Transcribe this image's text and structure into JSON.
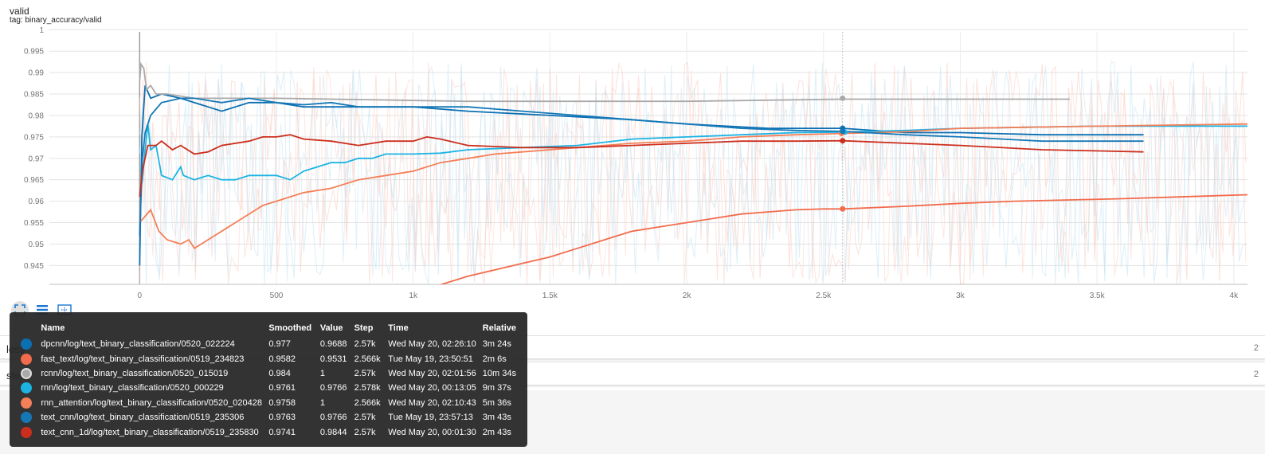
{
  "card": {
    "title": "valid",
    "tag": "tag: binary_accuracy/valid"
  },
  "chart_data": {
    "type": "line",
    "xlim": [
      -330,
      4050
    ],
    "ylim": [
      0.9406,
      0.9995
    ],
    "x_ticks": [
      {
        "v": 0,
        "label": "0"
      },
      {
        "v": 500,
        "label": "500"
      },
      {
        "v": 1000,
        "label": "1k"
      },
      {
        "v": 1500,
        "label": "1.5k"
      },
      {
        "v": 2000,
        "label": "2k"
      },
      {
        "v": 2500,
        "label": "2.5k"
      },
      {
        "v": 3000,
        "label": "3k"
      },
      {
        "v": 3500,
        "label": "3.5k"
      },
      {
        "v": 4000,
        "label": "4k"
      }
    ],
    "y_ticks": [
      {
        "v": 0.945,
        "label": "0.945"
      },
      {
        "v": 0.95,
        "label": "0.95"
      },
      {
        "v": 0.955,
        "label": "0.955"
      },
      {
        "v": 0.96,
        "label": "0.96"
      },
      {
        "v": 0.965,
        "label": "0.965"
      },
      {
        "v": 0.97,
        "label": "0.97"
      },
      {
        "v": 0.975,
        "label": "0.975"
      },
      {
        "v": 0.98,
        "label": "0.98"
      },
      {
        "v": 0.985,
        "label": "0.985"
      },
      {
        "v": 0.99,
        "label": "0.99"
      },
      {
        "v": 0.995,
        "label": "0.995"
      },
      {
        "v": 1,
        "label": "1"
      }
    ],
    "hover_step": 2570,
    "series": [
      {
        "name": "dpcnn/log/text_binary_classification/0520_022224",
        "color": "#0b6fb2",
        "points": [
          [
            0,
            0.945
          ],
          [
            8,
            0.975
          ],
          [
            20,
            0.987
          ],
          [
            40,
            0.984
          ],
          [
            80,
            0.985
          ],
          [
            150,
            0.984
          ],
          [
            250,
            0.982
          ],
          [
            300,
            0.981
          ],
          [
            400,
            0.983
          ],
          [
            500,
            0.983
          ],
          [
            600,
            0.982
          ],
          [
            750,
            0.982
          ],
          [
            1000,
            0.982
          ],
          [
            1200,
            0.981
          ],
          [
            1500,
            0.98
          ],
          [
            1800,
            0.979
          ],
          [
            2000,
            0.978
          ],
          [
            2300,
            0.977
          ],
          [
            2570,
            0.977
          ],
          [
            2800,
            0.976
          ],
          [
            3000,
            0.976
          ],
          [
            3300,
            0.9755
          ],
          [
            3670,
            0.9755
          ]
        ],
        "marker": [
          2570,
          0.977
        ]
      },
      {
        "name": "fast_text/log/text_binary_classification/0519_234823",
        "color": "#f26b4c",
        "points": [
          [
            1100,
            0.9405
          ],
          [
            1200,
            0.9425
          ],
          [
            1300,
            0.944
          ],
          [
            1400,
            0.9455
          ],
          [
            1500,
            0.947
          ],
          [
            1600,
            0.949
          ],
          [
            1700,
            0.951
          ],
          [
            1800,
            0.953
          ],
          [
            1900,
            0.954
          ],
          [
            2000,
            0.955
          ],
          [
            2100,
            0.956
          ],
          [
            2200,
            0.957
          ],
          [
            2300,
            0.9575
          ],
          [
            2400,
            0.958
          ],
          [
            2500,
            0.9582
          ],
          [
            2570,
            0.9582
          ],
          [
            2800,
            0.9588
          ],
          [
            3000,
            0.9595
          ],
          [
            3200,
            0.96
          ],
          [
            3400,
            0.9603
          ],
          [
            3600,
            0.9606
          ],
          [
            3800,
            0.961
          ],
          [
            4050,
            0.9615
          ]
        ],
        "marker": [
          2570,
          0.9582
        ]
      },
      {
        "name": "rcnn/log/text_binary_classification/0520_015019",
        "color": "#aaaaaa",
        "points": [
          [
            0,
            0.988
          ],
          [
            5,
            0.992
          ],
          [
            15,
            0.991
          ],
          [
            25,
            0.986
          ],
          [
            40,
            0.987
          ],
          [
            60,
            0.985
          ],
          [
            100,
            0.985
          ],
          [
            200,
            0.984
          ],
          [
            300,
            0.984
          ],
          [
            500,
            0.984
          ],
          [
            800,
            0.9837
          ],
          [
            1200,
            0.9833
          ],
          [
            1500,
            0.9833
          ],
          [
            2000,
            0.9833
          ],
          [
            2570,
            0.9838
          ],
          [
            3000,
            0.9838
          ],
          [
            3400,
            0.9838
          ]
        ],
        "marker": [
          2570,
          0.984
        ]
      },
      {
        "name": "rnn/log/text_binary_classification/0520_000229",
        "color": "#1cb3e3",
        "points": [
          [
            0,
            0.961
          ],
          [
            10,
            0.965
          ],
          [
            20,
            0.972
          ],
          [
            30,
            0.978
          ],
          [
            40,
            0.972
          ],
          [
            60,
            0.973
          ],
          [
            80,
            0.966
          ],
          [
            120,
            0.965
          ],
          [
            150,
            0.968
          ],
          [
            160,
            0.966
          ],
          [
            200,
            0.965
          ],
          [
            250,
            0.966
          ],
          [
            300,
            0.965
          ],
          [
            350,
            0.965
          ],
          [
            400,
            0.966
          ],
          [
            450,
            0.966
          ],
          [
            500,
            0.966
          ],
          [
            550,
            0.965
          ],
          [
            600,
            0.967
          ],
          [
            650,
            0.968
          ],
          [
            700,
            0.969
          ],
          [
            750,
            0.969
          ],
          [
            800,
            0.97
          ],
          [
            850,
            0.97
          ],
          [
            900,
            0.971
          ],
          [
            1000,
            0.971
          ],
          [
            1100,
            0.9712
          ],
          [
            1200,
            0.972
          ],
          [
            1400,
            0.9725
          ],
          [
            1600,
            0.973
          ],
          [
            1800,
            0.9745
          ],
          [
            2000,
            0.975
          ],
          [
            2200,
            0.9755
          ],
          [
            2400,
            0.976
          ],
          [
            2570,
            0.9761
          ],
          [
            2800,
            0.9765
          ],
          [
            3000,
            0.977
          ],
          [
            3500,
            0.9775
          ],
          [
            4050,
            0.9775
          ]
        ],
        "marker": [
          2578,
          0.9761
        ]
      },
      {
        "name": "rnn_attention/log/text_binary_classification/0520_020428",
        "color": "#f47f58",
        "points": [
          [
            0,
            0.955
          ],
          [
            40,
            0.958
          ],
          [
            70,
            0.953
          ],
          [
            100,
            0.951
          ],
          [
            150,
            0.95
          ],
          [
            180,
            0.951
          ],
          [
            200,
            0.949
          ],
          [
            250,
            0.951
          ],
          [
            300,
            0.953
          ],
          [
            350,
            0.955
          ],
          [
            400,
            0.957
          ],
          [
            450,
            0.959
          ],
          [
            500,
            0.96
          ],
          [
            600,
            0.962
          ],
          [
            700,
            0.963
          ],
          [
            800,
            0.965
          ],
          [
            900,
            0.966
          ],
          [
            1000,
            0.967
          ],
          [
            1100,
            0.969
          ],
          [
            1200,
            0.97
          ],
          [
            1300,
            0.971
          ],
          [
            1400,
            0.9715
          ],
          [
            1500,
            0.972
          ],
          [
            1600,
            0.9725
          ],
          [
            1800,
            0.9735
          ],
          [
            2000,
            0.974
          ],
          [
            2200,
            0.975
          ],
          [
            2400,
            0.9755
          ],
          [
            2570,
            0.9758
          ],
          [
            2800,
            0.9762
          ],
          [
            3000,
            0.977
          ],
          [
            3500,
            0.9775
          ],
          [
            4050,
            0.978
          ]
        ],
        "marker": [
          2566,
          0.9758
        ]
      },
      {
        "name": "text_cnn/log/text_binary_classification/0519_235306",
        "color": "#1478b7",
        "points": [
          [
            0,
            0.952
          ],
          [
            10,
            0.97
          ],
          [
            20,
            0.976
          ],
          [
            40,
            0.98
          ],
          [
            80,
            0.983
          ],
          [
            150,
            0.984
          ],
          [
            200,
            0.984
          ],
          [
            300,
            0.983
          ],
          [
            400,
            0.984
          ],
          [
            500,
            0.983
          ],
          [
            600,
            0.9825
          ],
          [
            700,
            0.983
          ],
          [
            800,
            0.982
          ],
          [
            1000,
            0.982
          ],
          [
            1200,
            0.982
          ],
          [
            1400,
            0.981
          ],
          [
            1600,
            0.98
          ],
          [
            1800,
            0.979
          ],
          [
            2000,
            0.978
          ],
          [
            2200,
            0.977
          ],
          [
            2400,
            0.9765
          ],
          [
            2570,
            0.9763
          ],
          [
            2800,
            0.9755
          ],
          [
            3000,
            0.975
          ],
          [
            3300,
            0.974
          ],
          [
            3670,
            0.974
          ]
        ],
        "marker": [
          2570,
          0.9763
        ]
      },
      {
        "name": "text_cnn_1d/log/text_binary_classification/0519_235830",
        "color": "#cc2e1d",
        "points": [
          [
            0,
            0.961
          ],
          [
            10,
            0.967
          ],
          [
            30,
            0.973
          ],
          [
            60,
            0.973
          ],
          [
            80,
            0.974
          ],
          [
            120,
            0.972
          ],
          [
            150,
            0.973
          ],
          [
            200,
            0.971
          ],
          [
            250,
            0.9715
          ],
          [
            300,
            0.973
          ],
          [
            400,
            0.974
          ],
          [
            450,
            0.975
          ],
          [
            500,
            0.975
          ],
          [
            550,
            0.9755
          ],
          [
            600,
            0.9745
          ],
          [
            700,
            0.974
          ],
          [
            800,
            0.973
          ],
          [
            900,
            0.974
          ],
          [
            1000,
            0.974
          ],
          [
            1050,
            0.975
          ],
          [
            1100,
            0.9745
          ],
          [
            1200,
            0.973
          ],
          [
            1400,
            0.9725
          ],
          [
            1600,
            0.9725
          ],
          [
            1800,
            0.973
          ],
          [
            2000,
            0.9735
          ],
          [
            2200,
            0.974
          ],
          [
            2400,
            0.974
          ],
          [
            2570,
            0.9741
          ],
          [
            2800,
            0.9735
          ],
          [
            3000,
            0.973
          ],
          [
            3300,
            0.972
          ],
          [
            3670,
            0.9715
          ]
        ],
        "marker": [
          2570,
          0.9741
        ]
      }
    ]
  },
  "toolbar": {
    "icons": [
      "fit-domain-icon",
      "data-selection-icon",
      "zoom-select-icon"
    ]
  },
  "sections": [
    {
      "label": "loss",
      "count": "2"
    },
    {
      "label": "step",
      "count": "2"
    }
  ],
  "tooltip": {
    "headers": [
      "Name",
      "Smoothed",
      "Value",
      "Step",
      "Time",
      "Relative"
    ],
    "rows": [
      {
        "color": "#0b6fb2",
        "selected": false,
        "name": "dpcnn/log/text_binary_classification/0520_022224",
        "smoothed": "0.977",
        "value": "0.9688",
        "step": "2.57k",
        "time": "Wed May 20, 02:26:10",
        "relative": "3m 24s"
      },
      {
        "color": "#f26b4c",
        "selected": false,
        "name": "fast_text/log/text_binary_classification/0519_234823",
        "smoothed": "0.9582",
        "value": "0.9531",
        "step": "2.566k",
        "time": "Tue May 19, 23:50:51",
        "relative": "2m 6s"
      },
      {
        "color": "#aaaaaa",
        "selected": true,
        "name": "rcnn/log/text_binary_classification/0520_015019",
        "smoothed": "0.984",
        "value": "1",
        "step": "2.57k",
        "time": "Wed May 20, 02:01:56",
        "relative": "10m 34s"
      },
      {
        "color": "#1cb3e3",
        "selected": false,
        "name": "rnn/log/text_binary_classification/0520_000229",
        "smoothed": "0.9761",
        "value": "0.9766",
        "step": "2.578k",
        "time": "Wed May 20, 00:13:05",
        "relative": "9m 37s"
      },
      {
        "color": "#f47f58",
        "selected": false,
        "name": "rnn_attention/log/text_binary_classification/0520_020428",
        "smoothed": "0.9758",
        "value": "1",
        "step": "2.566k",
        "time": "Wed May 20, 02:10:43",
        "relative": "5m 36s"
      },
      {
        "color": "#1478b7",
        "selected": false,
        "name": "text_cnn/log/text_binary_classification/0519_235306",
        "smoothed": "0.9763",
        "value": "0.9766",
        "step": "2.57k",
        "time": "Tue May 19, 23:57:13",
        "relative": "3m 43s"
      },
      {
        "color": "#cc2e1d",
        "selected": false,
        "name": "text_cnn_1d/log/text_binary_classification/0519_235830",
        "smoothed": "0.9741",
        "value": "0.9844",
        "step": "2.57k",
        "time": "Wed May 20, 00:01:30",
        "relative": "2m 43s"
      }
    ]
  }
}
